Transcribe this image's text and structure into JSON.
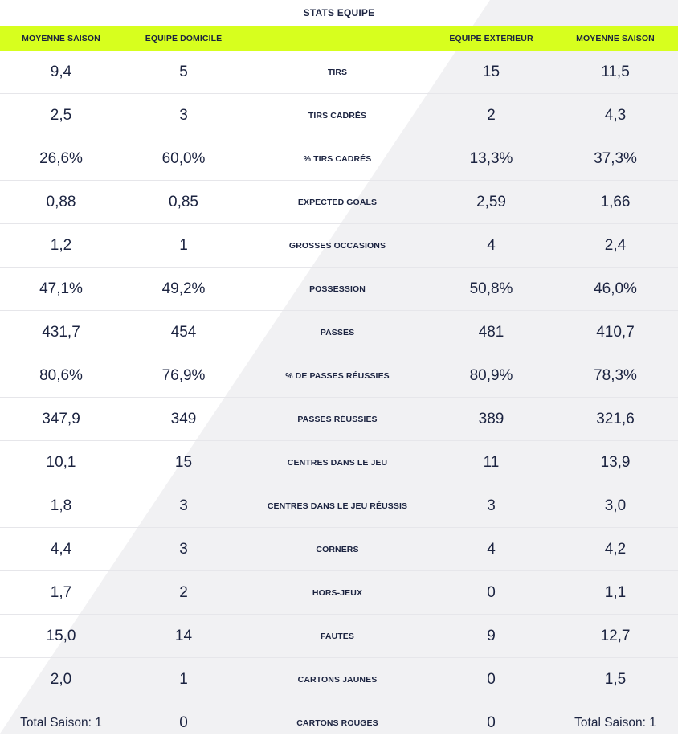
{
  "title": "STATS EQUIPE",
  "headers": [
    "MOYENNE SAISON",
    "EQUIPE DOMICILE",
    "",
    "EQUIPE EXTERIEUR",
    "MOYENNE SAISON"
  ],
  "colors": {
    "header_bg": "#d7ff1e",
    "text": "#1b2340",
    "diagonal": "#f1f1f3"
  },
  "rows": [
    {
      "home_avg": "9,4",
      "home": "5",
      "label": "TIRS",
      "away": "15",
      "away_avg": "11,5"
    },
    {
      "home_avg": "2,5",
      "home": "3",
      "label": "TIRS CADRÉS",
      "away": "2",
      "away_avg": "4,3"
    },
    {
      "home_avg": "26,6%",
      "home": "60,0%",
      "label": "% TIRS CADRÉS",
      "away": "13,3%",
      "away_avg": "37,3%"
    },
    {
      "home_avg": "0,88",
      "home": "0,85",
      "label": "EXPECTED GOALS",
      "away": "2,59",
      "away_avg": "1,66"
    },
    {
      "home_avg": "1,2",
      "home": "1",
      "label": "GROSSES OCCASIONS",
      "away": "4",
      "away_avg": "2,4"
    },
    {
      "home_avg": "47,1%",
      "home": "49,2%",
      "label": "POSSESSION",
      "away": "50,8%",
      "away_avg": "46,0%"
    },
    {
      "home_avg": "431,7",
      "home": "454",
      "label": "PASSES",
      "away": "481",
      "away_avg": "410,7"
    },
    {
      "home_avg": "80,6%",
      "home": "76,9%",
      "label": "% DE PASSES RÉUSSIES",
      "away": "80,9%",
      "away_avg": "78,3%"
    },
    {
      "home_avg": "347,9",
      "home": "349",
      "label": "PASSES RÉUSSIES",
      "away": "389",
      "away_avg": "321,6"
    },
    {
      "home_avg": "10,1",
      "home": "15",
      "label": "CENTRES DANS LE JEU",
      "away": "11",
      "away_avg": "13,9"
    },
    {
      "home_avg": "1,8",
      "home": "3",
      "label": "CENTRES DANS LE JEU RÉUSSIS",
      "away": "3",
      "away_avg": "3,0"
    },
    {
      "home_avg": "4,4",
      "home": "3",
      "label": "CORNERS",
      "away": "4",
      "away_avg": "4,2"
    },
    {
      "home_avg": "1,7",
      "home": "2",
      "label": "HORS-JEUX",
      "away": "0",
      "away_avg": "1,1"
    },
    {
      "home_avg": "15,0",
      "home": "14",
      "label": "FAUTES",
      "away": "9",
      "away_avg": "12,7"
    },
    {
      "home_avg": "2,0",
      "home": "1",
      "label": "CARTONS JAUNES",
      "away": "0",
      "away_avg": "1,5"
    },
    {
      "home_avg": "Total Saison: 1",
      "home": "0",
      "label": "CARTONS ROUGES",
      "away": "0",
      "away_avg": "Total Saison: 1"
    }
  ]
}
